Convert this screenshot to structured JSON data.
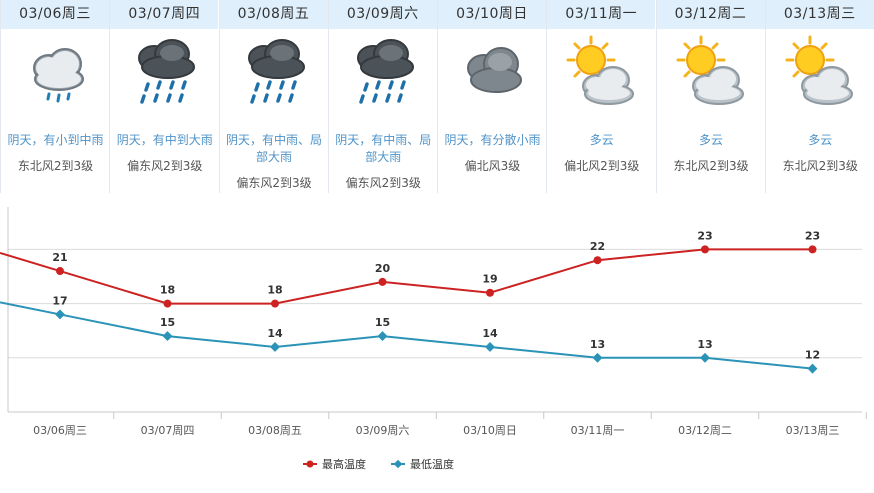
{
  "days": [
    {
      "date": "03/06周三",
      "condition": "阴天，有小到中雨",
      "wind": "东北风2到3级",
      "icon": "cloud-light-rain-icon"
    },
    {
      "date": "03/07周四",
      "condition": "阴天，有中到大雨",
      "wind": "偏东风2到3级",
      "icon": "cloud-heavy-rain-icon"
    },
    {
      "date": "03/08周五",
      "condition": "阴天，有中雨、局部大雨",
      "wind": "偏东风2到3级",
      "icon": "cloud-heavy-rain-icon"
    },
    {
      "date": "03/09周六",
      "condition": "阴天，有中雨、局部大雨",
      "wind": "偏东风2到3级",
      "icon": "cloud-heavy-rain-icon"
    },
    {
      "date": "03/10周日",
      "condition": "阴天，有分散小雨",
      "wind": "偏北风3级",
      "icon": "overcast-cloud-icon"
    },
    {
      "date": "03/11周一",
      "condition": "多云",
      "wind": "偏北风2到3级",
      "icon": "sun-behind-cloud-icon"
    },
    {
      "date": "03/12周二",
      "condition": "多云",
      "wind": "东北风2到3级",
      "icon": "sun-behind-cloud-icon"
    },
    {
      "date": "03/13周三",
      "condition": "多云",
      "wind": "东北风2到3级",
      "icon": "sun-behind-cloud-icon"
    }
  ],
  "chart_data": {
    "type": "line",
    "categories": [
      "03/06周三",
      "03/07周四",
      "03/08周五",
      "03/09周六",
      "03/10周日",
      "03/11周一",
      "03/12周二",
      "03/13周三"
    ],
    "series": [
      {
        "name": "最高温度",
        "values": [
          21,
          18,
          18,
          20,
          19,
          22,
          23,
          23
        ],
        "color": "#cc2222"
      },
      {
        "name": "最低温度",
        "values": [
          17,
          15,
          14,
          15,
          14,
          13,
          13,
          12
        ],
        "color": "#2b93b8"
      }
    ],
    "ylim": [
      8,
      27
    ],
    "grid": true,
    "legend": "bottom-center"
  }
}
